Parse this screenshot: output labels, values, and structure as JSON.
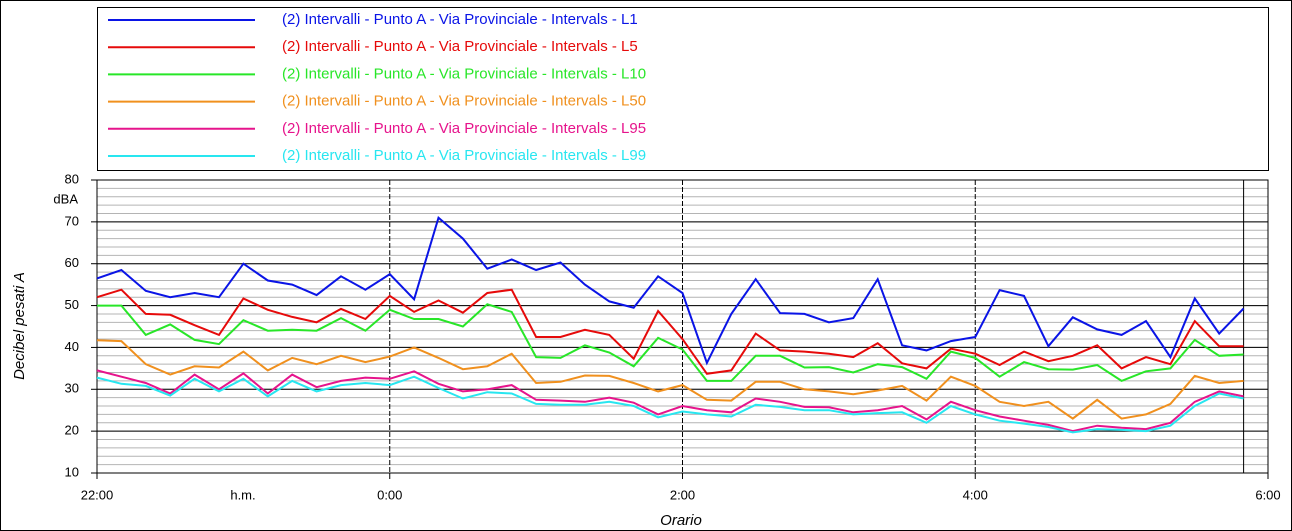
{
  "chart_data": {
    "type": "line",
    "x_label": "Orario",
    "y_label": "Decibel pesati A",
    "y_unit_label": "dBA",
    "x_unit_label": "h.m.",
    "xlim": [
      0,
      480
    ],
    "xticks": [
      {
        "value": 0,
        "label": "22:00"
      },
      {
        "value": 120,
        "label": "0:00"
      },
      {
        "value": 240,
        "label": "2:00"
      },
      {
        "value": 360,
        "label": "4:00"
      },
      {
        "value": 480,
        "label": "6:00"
      }
    ],
    "ylim": [
      10,
      80
    ],
    "yticks": [
      10,
      20,
      30,
      40,
      50,
      60,
      70,
      80
    ],
    "minor_ystep": 2,
    "grid": true,
    "x": [
      0,
      10,
      20,
      30,
      40,
      50,
      60,
      70,
      80,
      90,
      100,
      110,
      120,
      130,
      140,
      150,
      160,
      170,
      180,
      190,
      200,
      210,
      220,
      230,
      240,
      250,
      260,
      270,
      280,
      290,
      300,
      310,
      320,
      330,
      340,
      350,
      360,
      370,
      380,
      390,
      400,
      410,
      420,
      430,
      440,
      450,
      460,
      470
    ],
    "series": [
      {
        "name": "(2) Intervalli - Punto A - Via Provinciale - Intervals - L1",
        "color": "#0a14e6",
        "values": [
          56.5,
          58.5,
          53.5,
          52,
          53,
          52,
          60,
          56,
          55,
          52.5,
          57,
          53.8,
          57.5,
          51.5,
          71,
          66,
          58.8,
          61,
          58.5,
          60.3,
          55,
          51,
          49.5,
          57,
          53,
          36.3,
          48,
          56.3,
          48.2,
          48,
          46,
          47,
          56.3,
          40.5,
          39.3,
          41.5,
          42.5,
          53.7,
          52.3,
          40.3,
          47.2,
          44.3,
          43,
          46.3,
          37.7,
          51.7,
          43.3,
          49.3
        ]
      },
      {
        "name": "(2) Intervalli - Punto A - Via Provinciale - Intervals - L5",
        "color": "#e60a0a",
        "values": [
          52,
          53.8,
          48,
          47.8,
          45.3,
          43,
          51.7,
          49,
          47.3,
          46,
          49.2,
          46.8,
          52.3,
          48.5,
          51.2,
          48.3,
          53,
          53.8,
          42.5,
          42.5,
          44.2,
          43,
          37.3,
          48.7,
          42,
          33.7,
          34.5,
          43.3,
          39.3,
          39,
          38.5,
          37.7,
          41,
          36.2,
          35,
          39.7,
          38.5,
          35.8,
          39,
          36.7,
          38,
          40.5,
          35,
          37.7,
          36,
          46.3,
          40.3,
          40.3
        ]
      },
      {
        "name": "(2) Intervalli - Punto A - Via Provinciale - Intervals - L10",
        "color": "#28e628",
        "values": [
          50,
          50,
          43,
          45.5,
          41.8,
          40.8,
          46.5,
          44,
          44.2,
          44,
          47,
          44,
          49,
          46.8,
          46.8,
          45,
          50.3,
          48.5,
          37.7,
          37.5,
          40.5,
          38.8,
          35.5,
          42.3,
          39.5,
          32,
          32,
          38,
          38,
          35.2,
          35.3,
          34,
          36,
          35.3,
          32.5,
          39,
          37.5,
          33,
          36.5,
          34.8,
          34.7,
          35.8,
          32,
          34.3,
          35,
          41.8,
          38,
          38.3
        ]
      },
      {
        "name": "(2) Intervalli - Punto A - Via Provinciale - Intervals - L50",
        "color": "#f0901e",
        "values": [
          41.7,
          41.5,
          36,
          33.5,
          35.5,
          35.2,
          39,
          34.5,
          37.5,
          36,
          38,
          36.5,
          37.8,
          40,
          37.5,
          34.8,
          35.5,
          38.5,
          31.5,
          31.8,
          33.3,
          33.2,
          31.5,
          29.5,
          31,
          27.5,
          27.3,
          31.8,
          31.8,
          30,
          29.5,
          28.8,
          29.7,
          30.8,
          27.3,
          33,
          30.8,
          27,
          26,
          27,
          23,
          27.5,
          23,
          24,
          26.5,
          33.2,
          31.5,
          32
        ]
      },
      {
        "name": "(2) Intervalli - Punto A - Via Provinciale - Intervals - L95",
        "color": "#e6148c",
        "values": [
          34.5,
          33,
          31.5,
          29,
          33.5,
          30,
          33.8,
          29,
          33.5,
          30.5,
          32,
          32.8,
          32.5,
          34.3,
          31.3,
          29.5,
          30,
          31,
          27.5,
          27.3,
          27,
          28,
          26.8,
          24,
          26,
          25,
          24.5,
          27.8,
          27,
          25.8,
          25.7,
          24.5,
          25,
          26,
          22.8,
          27,
          25,
          23.5,
          22.5,
          21.5,
          20,
          21.3,
          20.8,
          20.5,
          22,
          27,
          29.5,
          28.3
        ]
      },
      {
        "name": "(2) Intervalli - Punto A - Via Provinciale - Intervals - L99",
        "color": "#28e6f0",
        "values": [
          32.8,
          31.3,
          30.8,
          28.5,
          32.5,
          29.5,
          32.5,
          28.3,
          32,
          29.5,
          31,
          31.5,
          31,
          33,
          30.3,
          27.8,
          29.3,
          29,
          26.5,
          26.3,
          26.3,
          27,
          26,
          23.3,
          24.7,
          24,
          23.5,
          26.3,
          25.8,
          25,
          25,
          24,
          24.3,
          24.5,
          22,
          26,
          24,
          22.5,
          21.8,
          21,
          19.7,
          20.5,
          20.3,
          20,
          21.3,
          26,
          29,
          27.8
        ]
      }
    ]
  }
}
